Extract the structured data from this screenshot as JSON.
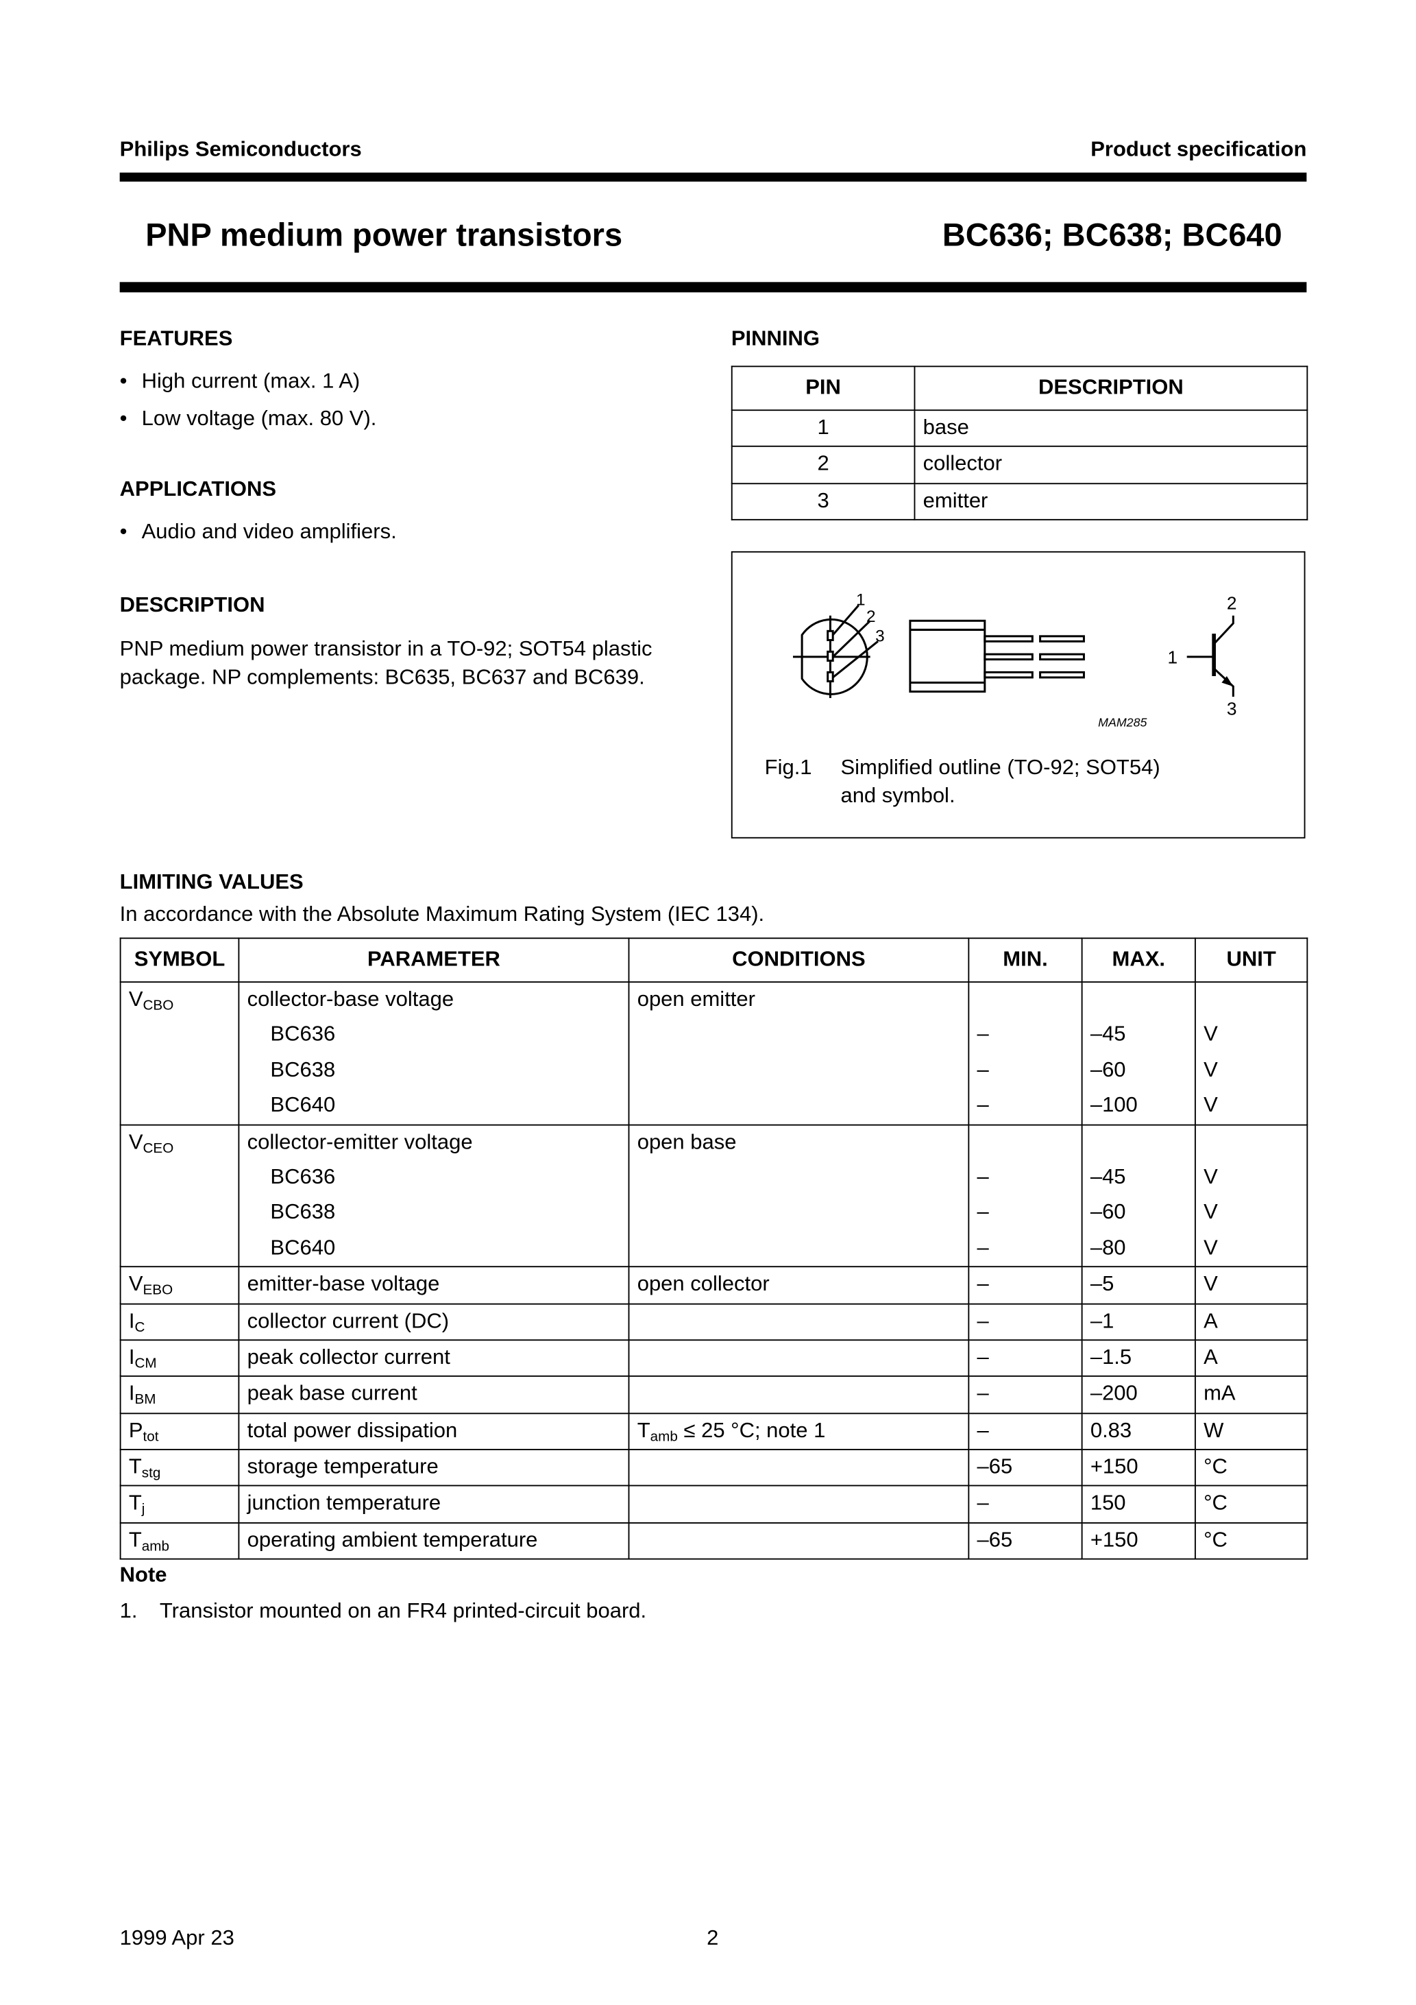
{
  "header": {
    "company": "Philips Semiconductors",
    "doc_type": "Product specification",
    "title": "PNP medium power transistors",
    "parts": "BC636; BC638; BC640"
  },
  "features": {
    "heading": "FEATURES",
    "items": [
      "High current (max. 1 A)",
      "Low voltage (max. 80 V)."
    ]
  },
  "applications": {
    "heading": "APPLICATIONS",
    "items": [
      "Audio and video amplifiers."
    ]
  },
  "description": {
    "heading": "DESCRIPTION",
    "lines": [
      "PNP medium power transistor in a TO-92; SOT54 plastic",
      "package. NP  complements: BC635, BC637 and BC639."
    ]
  },
  "pinning": {
    "heading": "PINNING",
    "columns": [
      "PIN",
      "DESCRIPTION"
    ],
    "rows": [
      {
        "pin": "1",
        "desc": "base"
      },
      {
        "pin": "2",
        "desc": "collector"
      },
      {
        "pin": "3",
        "desc": "emitter"
      }
    ]
  },
  "figure": {
    "label": "Fig.1",
    "caption_1": "Simplified outline (TO-92; SOT54)",
    "caption_2": "and symbol.",
    "code": "MAM285",
    "pins": [
      "1",
      "2",
      "3"
    ]
  },
  "limiting": {
    "heading": "LIMITING VALUES",
    "intro": "In accordance with the Absolute Maximum Rating System (IEC 134).",
    "columns": [
      "SYMBOL",
      "PARAMETER",
      "CONDITIONS",
      "MIN.",
      "MAX.",
      "UNIT"
    ],
    "groups": [
      {
        "sym": "V",
        "sub": "CBO",
        "param": "collector-base voltage",
        "cond": "open emitter",
        "cond_sub": "",
        "cond_tail": "",
        "lines": [
          {
            "part": "BC636",
            "min": "–",
            "max": "–45",
            "unit": "V"
          },
          {
            "part": "BC638",
            "min": "–",
            "max": "–60",
            "unit": "V"
          },
          {
            "part": "BC640",
            "min": "–",
            "max": "–100",
            "unit": "V"
          }
        ]
      },
      {
        "sym": "V",
        "sub": "CEO",
        "param": "collector-emitter voltage",
        "cond": "open base",
        "cond_sub": "",
        "cond_tail": "",
        "lines": [
          {
            "part": "BC636",
            "min": "–",
            "max": "–45",
            "unit": "V"
          },
          {
            "part": "BC638",
            "min": "–",
            "max": "–60",
            "unit": "V"
          },
          {
            "part": "BC640",
            "min": "–",
            "max": "–80",
            "unit": "V"
          }
        ]
      },
      {
        "sym": "V",
        "sub": "EBO",
        "param": "emitter-base voltage",
        "cond": "open collector",
        "cond_sub": "",
        "cond_tail": "",
        "min": "–",
        "max": "–5",
        "unit": "V"
      },
      {
        "sym": "I",
        "sub": "C",
        "param": "collector current (DC)",
        "cond": "",
        "cond_sub": "",
        "cond_tail": "",
        "min": "–",
        "max": "–1",
        "unit": "A"
      },
      {
        "sym": "I",
        "sub": "CM",
        "param": "peak collector current",
        "cond": "",
        "cond_sub": "",
        "cond_tail": "",
        "min": "–",
        "max": "–1.5",
        "unit": "A"
      },
      {
        "sym": "I",
        "sub": "BM",
        "param": "peak base current",
        "cond": "",
        "cond_sub": "",
        "cond_tail": "",
        "min": "–",
        "max": "–200",
        "unit": "mA"
      },
      {
        "sym": "P",
        "sub": "tot",
        "param": "total power dissipation",
        "cond": "T",
        "cond_sub": "amb",
        "cond_tail": " ≤ 25 °C; note 1",
        "min": "–",
        "max": "0.83",
        "unit": "W"
      },
      {
        "sym": "T",
        "sub": "stg",
        "param": "storage temperature",
        "cond": "",
        "cond_sub": "",
        "cond_tail": "",
        "min": "–65",
        "max": "+150",
        "unit": "°C"
      },
      {
        "sym": "T",
        "sub": "j",
        "param": "junction temperature",
        "cond": "",
        "cond_sub": "",
        "cond_tail": "",
        "min": "–",
        "max": "150",
        "unit": "°C"
      },
      {
        "sym": "T",
        "sub": "amb",
        "param": "operating ambient temperature",
        "cond": "",
        "cond_sub": "",
        "cond_tail": "",
        "min": "–65",
        "max": "+150",
        "unit": "°C"
      }
    ]
  },
  "note": {
    "heading": "Note",
    "items": [
      {
        "num": "1.",
        "text": "Transistor mounted on an FR4 printed-circuit board."
      }
    ]
  },
  "footer": {
    "date": "1999 Apr 23",
    "page": "2"
  }
}
